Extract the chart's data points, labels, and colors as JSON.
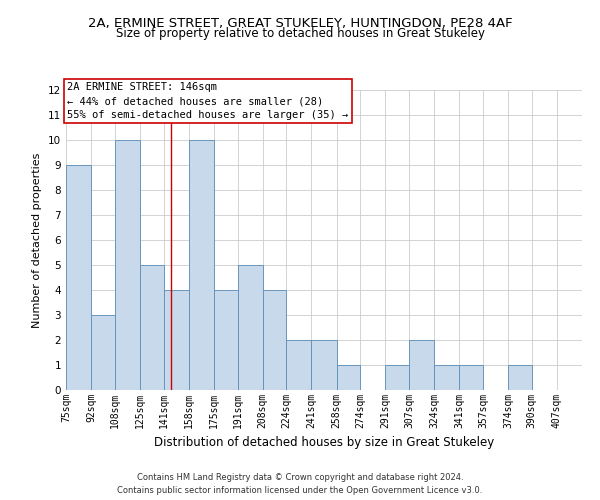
{
  "title_line1": "2A, ERMINE STREET, GREAT STUKELEY, HUNTINGDON, PE28 4AF",
  "title_line2": "Size of property relative to detached houses in Great Stukeley",
  "xlabel": "Distribution of detached houses by size in Great Stukeley",
  "ylabel": "Number of detached properties",
  "footer_line1": "Contains HM Land Registry data © Crown copyright and database right 2024.",
  "footer_line2": "Contains public sector information licensed under the Open Government Licence v3.0.",
  "annotation_line1": "2A ERMINE STREET: 146sqm",
  "annotation_line2": "← 44% of detached houses are smaller (28)",
  "annotation_line3": "55% of semi-detached houses are larger (35) →",
  "bar_color": "#c9d9ec",
  "bar_edge_color": "#5b8db8",
  "ref_line_color": "#cc0000",
  "ref_line_x": 146,
  "categories": [
    "75sqm",
    "92sqm",
    "108sqm",
    "125sqm",
    "141sqm",
    "158sqm",
    "175sqm",
    "191sqm",
    "208sqm",
    "224sqm",
    "241sqm",
    "258sqm",
    "274sqm",
    "291sqm",
    "307sqm",
    "324sqm",
    "341sqm",
    "357sqm",
    "374sqm",
    "390sqm",
    "407sqm"
  ],
  "bin_edges": [
    75,
    92,
    108,
    125,
    141,
    158,
    175,
    191,
    208,
    224,
    241,
    258,
    274,
    291,
    307,
    324,
    341,
    357,
    374,
    390,
    407
  ],
  "values": [
    9,
    3,
    10,
    5,
    4,
    10,
    4,
    5,
    4,
    2,
    2,
    1,
    0,
    1,
    2,
    1,
    1,
    0,
    1,
    0,
    0
  ],
  "ylim": [
    0,
    12
  ],
  "yticks": [
    0,
    1,
    2,
    3,
    4,
    5,
    6,
    7,
    8,
    9,
    10,
    11,
    12
  ],
  "background_color": "#ffffff",
  "grid_color": "#cccccc",
  "title1_fontsize": 9.5,
  "title2_fontsize": 8.5,
  "ylabel_fontsize": 8,
  "xlabel_fontsize": 8.5,
  "tick_fontsize": 7,
  "footer_fontsize": 6,
  "annot_fontsize": 7.5
}
